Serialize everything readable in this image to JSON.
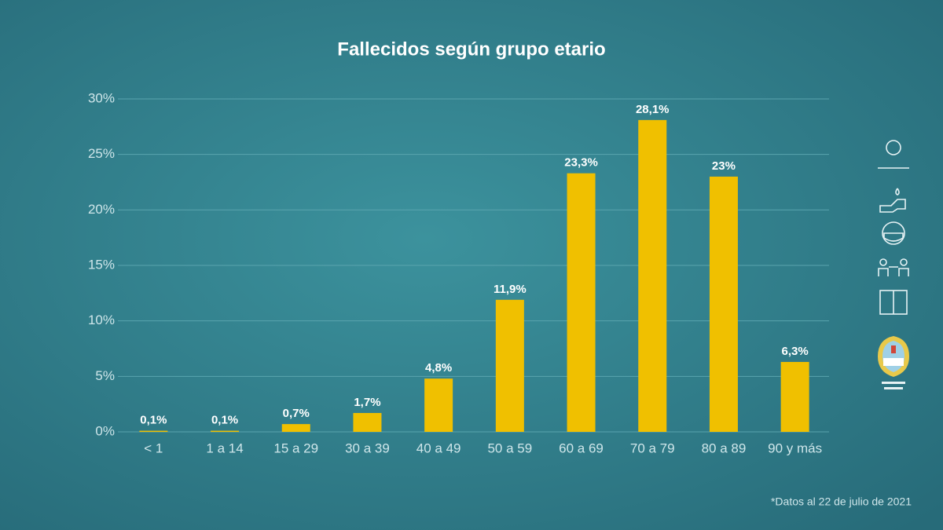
{
  "chart_data": {
    "type": "bar",
    "title": "Fallecidos según grupo etario",
    "categories": [
      "< 1",
      "1 a 14",
      "15 a 29",
      "30 a 39",
      "40 a 49",
      "50 a 59",
      "60 a 69",
      "70 a 79",
      "80 a 89",
      "90 y más"
    ],
    "values": [
      0.1,
      0.1,
      0.7,
      1.7,
      4.8,
      11.9,
      23.3,
      28.1,
      23,
      6.3
    ],
    "value_labels": [
      "0,1%",
      "0,1%",
      "0,7%",
      "1,7%",
      "4,8%",
      "11,9%",
      "23,3%",
      "28,1%",
      "23%",
      "6,3%"
    ],
    "color": "#f0c000",
    "ylim": [
      0,
      30
    ],
    "yticks": [
      {
        "value": 0,
        "label": "0%"
      },
      {
        "value": 5,
        "label": "5%"
      },
      {
        "value": 10,
        "label": "10%"
      },
      {
        "value": 15,
        "label": "15%"
      },
      {
        "value": 20,
        "label": "20%"
      },
      {
        "value": 25,
        "label": "25%"
      },
      {
        "value": 30,
        "label": "30%"
      }
    ],
    "grid": true,
    "footnote": "*Datos al 22 de julio de 2021"
  }
}
